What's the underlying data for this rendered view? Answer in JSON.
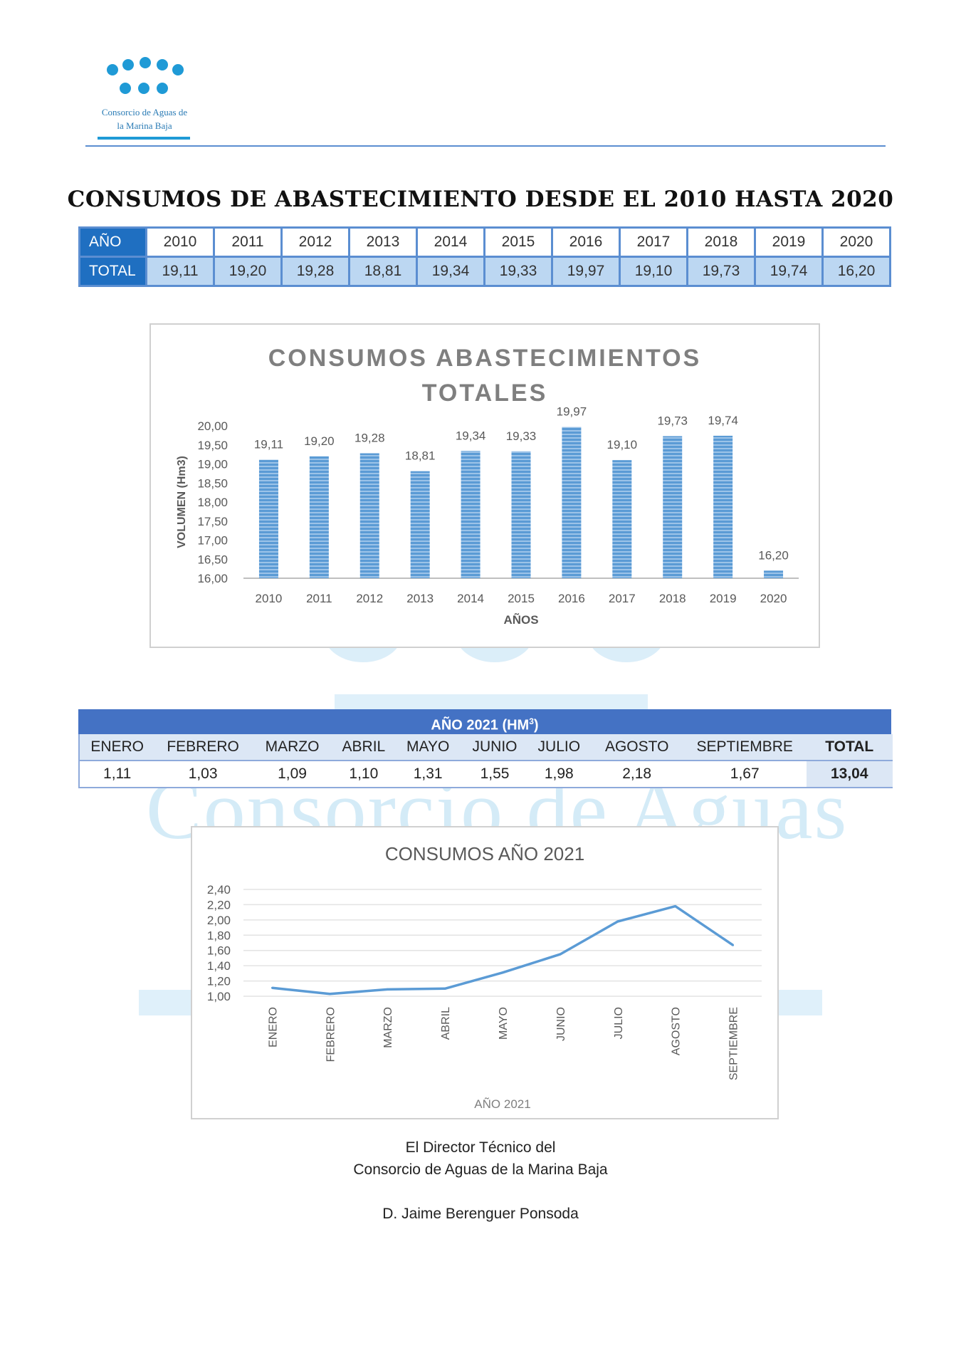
{
  "org": {
    "logo_text": "Consorcio de Aguas de la Marina Baja",
    "watermark_text": "Consorcio de Aguas"
  },
  "page_title": "CONSUMOS DE ABASTECIMIENTO DESDE EL 2010 HASTA 2020",
  "table_annual": {
    "row_labels": [
      "AÑO",
      "TOTAL"
    ],
    "years": [
      "2010",
      "2011",
      "2012",
      "2013",
      "2014",
      "2015",
      "2016",
      "2017",
      "2018",
      "2019",
      "2020"
    ],
    "totals": [
      "19,11",
      "19,20",
      "19,28",
      "18,81",
      "19,34",
      "19,33",
      "19,97",
      "19,10",
      "19,73",
      "19,74",
      "16,20"
    ]
  },
  "table_2021": {
    "title": "AÑO 2021 (HM",
    "title_sup": "3",
    "title_end": ")",
    "months": [
      "ENERO",
      "FEBRERO",
      "MARZO",
      "ABRIL",
      "MAYO",
      "JUNIO",
      "JULIO",
      "AGOSTO",
      "SEPTIEMBRE"
    ],
    "values": [
      "1,11",
      "1,03",
      "1,09",
      "1,10",
      "1,31",
      "1,55",
      "1,98",
      "2,18",
      "1,67"
    ],
    "total_label": "TOTAL",
    "total_value": "13,04"
  },
  "chart_data": [
    {
      "type": "bar",
      "title_lines": [
        "CONSUMOS ABASTECIMIENTOS",
        "TOTALES"
      ],
      "xlabel": "AÑOS",
      "ylabel": "VOLUMEN (Hm3)",
      "categories": [
        "2010",
        "2011",
        "2012",
        "2013",
        "2014",
        "2015",
        "2016",
        "2017",
        "2018",
        "2019",
        "2020"
      ],
      "values": [
        19.11,
        19.2,
        19.28,
        18.81,
        19.34,
        19.33,
        19.97,
        19.1,
        19.73,
        19.74,
        16.2
      ],
      "value_labels": [
        "19,11",
        "19,20",
        "19,28",
        "18,81",
        "19,34",
        "19,33",
        "19,97",
        "19,10",
        "19,73",
        "19,74",
        "16,20"
      ],
      "ylim": [
        16,
        20
      ],
      "yticks": [
        "16,00",
        "16,50",
        "17,00",
        "17,50",
        "18,00",
        "18,50",
        "19,00",
        "19,50",
        "20,00"
      ],
      "color": "#5b9bd5",
      "grid": false
    },
    {
      "type": "line",
      "title": "CONSUMOS AÑO 2021",
      "xlabel": "AÑO 2021",
      "categories": [
        "ENERO",
        "FEBRERO",
        "MARZO",
        "ABRIL",
        "MAYO",
        "JUNIO",
        "JULIO",
        "AGOSTO",
        "SEPTIEMBRE"
      ],
      "values": [
        1.11,
        1.03,
        1.09,
        1.1,
        1.31,
        1.55,
        1.98,
        2.18,
        1.67
      ],
      "ylim": [
        1.0,
        2.4
      ],
      "yticks": [
        "1,00",
        "1,20",
        "1,40",
        "1,60",
        "1,80",
        "2,00",
        "2,20",
        "2,40"
      ],
      "color": "#5b9bd5",
      "grid": true
    }
  ],
  "signature": {
    "line1": "El Director Técnico del",
    "line2": "Consorcio de Aguas de la Marina Baja",
    "name": "D. Jaime Berenguer Ponsoda"
  }
}
